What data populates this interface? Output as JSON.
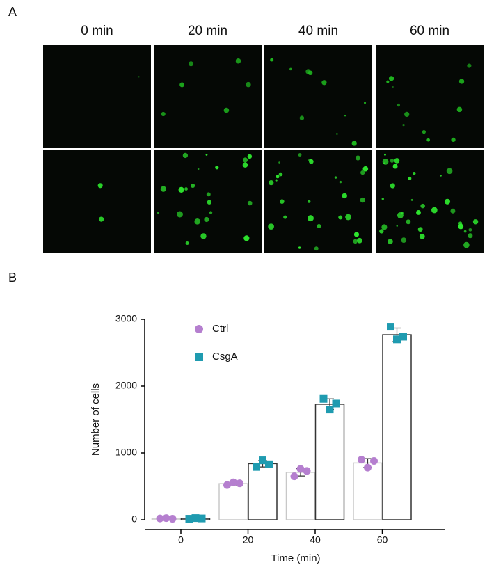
{
  "figure_panel": {
    "label": "A",
    "columns": [
      "0 min",
      "20 min",
      "40 min",
      "60 min"
    ]
  },
  "chart_data": {
    "type": "bar",
    "panel_label": "B",
    "x_label": "Time (min)",
    "y_label": "Number of cells",
    "categories": [
      "0",
      "20",
      "40",
      "60"
    ],
    "ylim": [
      0,
      3000
    ],
    "yticks": [
      0,
      1000,
      2000,
      3000
    ],
    "legend": "top-left",
    "series": [
      {
        "name": "Ctrl",
        "color": "#b57fcf",
        "bar_color": "#c8c8c8",
        "marker": "circle",
        "values": [
          20,
          540,
          710,
          850
        ],
        "errors": [
          10,
          20,
          55,
          65
        ],
        "points": [
          [
            20,
            25,
            15
          ],
          [
            520,
            560,
            545
          ],
          [
            650,
            760,
            730
          ],
          [
            900,
            780,
            880
          ]
        ]
      },
      {
        "name": "CsgA",
        "color": "#1f9bb0",
        "bar_color": "#333333",
        "marker": "square",
        "values": [
          20,
          840,
          1730,
          2770
        ],
        "errors": [
          10,
          50,
          80,
          100
        ],
        "points": [
          [
            15,
            25,
            20
          ],
          [
            790,
            890,
            830
          ],
          [
            1810,
            1650,
            1740
          ],
          [
            2890,
            2700,
            2740
          ]
        ]
      }
    ]
  }
}
